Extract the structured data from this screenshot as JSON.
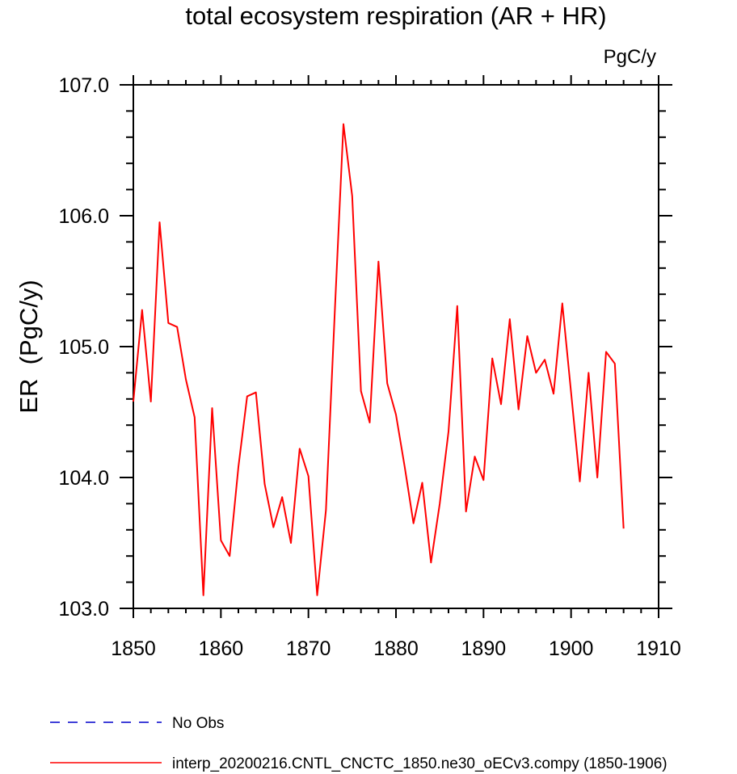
{
  "chart_data": {
    "type": "line",
    "title": "total ecosystem respiration (AR + HR)",
    "units_label": "PgC/y",
    "ylabel": "ER  (PgC/y)",
    "xlabel": "",
    "xlim": [
      1850,
      1910
    ],
    "ylim": [
      103.0,
      107.0
    ],
    "x_ticks": [
      "1850",
      "1860",
      "1870",
      "1880",
      "1890",
      "1900",
      "1910"
    ],
    "y_ticks": [
      "103.0",
      "104.0",
      "105.0",
      "106.0",
      "107.0"
    ],
    "grid": false,
    "legend_position": "bottom-left",
    "series": [
      {
        "name": "interp_20200216.CNTL_CNCTC_1850.ne30_oECv3.compy (1850-1906)",
        "color": "#ff0000",
        "style": "solid",
        "x": [
          1850,
          1851,
          1852,
          1853,
          1854,
          1855,
          1856,
          1857,
          1858,
          1859,
          1860,
          1861,
          1862,
          1863,
          1864,
          1865,
          1866,
          1867,
          1868,
          1869,
          1870,
          1871,
          1872,
          1873,
          1874,
          1875,
          1876,
          1877,
          1878,
          1879,
          1880,
          1881,
          1882,
          1883,
          1884,
          1885,
          1886,
          1887,
          1888,
          1889,
          1890,
          1891,
          1892,
          1893,
          1894,
          1895,
          1896,
          1897,
          1898,
          1899,
          1900,
          1901,
          1902,
          1903,
          1904,
          1905,
          1906
        ],
        "y": [
          104.58,
          105.28,
          104.58,
          105.95,
          105.18,
          105.15,
          104.75,
          104.46,
          103.1,
          104.53,
          103.52,
          103.4,
          104.08,
          104.62,
          104.65,
          103.95,
          103.62,
          103.85,
          103.5,
          104.22,
          104.01,
          103.1,
          103.75,
          105.25,
          106.7,
          106.15,
          104.66,
          104.42,
          105.65,
          104.72,
          104.48,
          104.08,
          103.65,
          103.96,
          103.35,
          103.8,
          104.35,
          105.31,
          103.74,
          104.16,
          103.98,
          104.91,
          104.56,
          105.21,
          104.52,
          105.08,
          104.8,
          104.9,
          104.64,
          105.33,
          104.65,
          103.97,
          104.8,
          104.0,
          104.96,
          104.87,
          103.61
        ]
      }
    ]
  },
  "legend": {
    "items": [
      {
        "label": "No Obs",
        "color": "#0000cc",
        "style": "dashed"
      },
      {
        "label": "interp_20200216.CNTL_CNCTC_1850.ne30_oECv3.compy (1850-1906)",
        "color": "#ff0000",
        "style": "solid"
      }
    ]
  }
}
